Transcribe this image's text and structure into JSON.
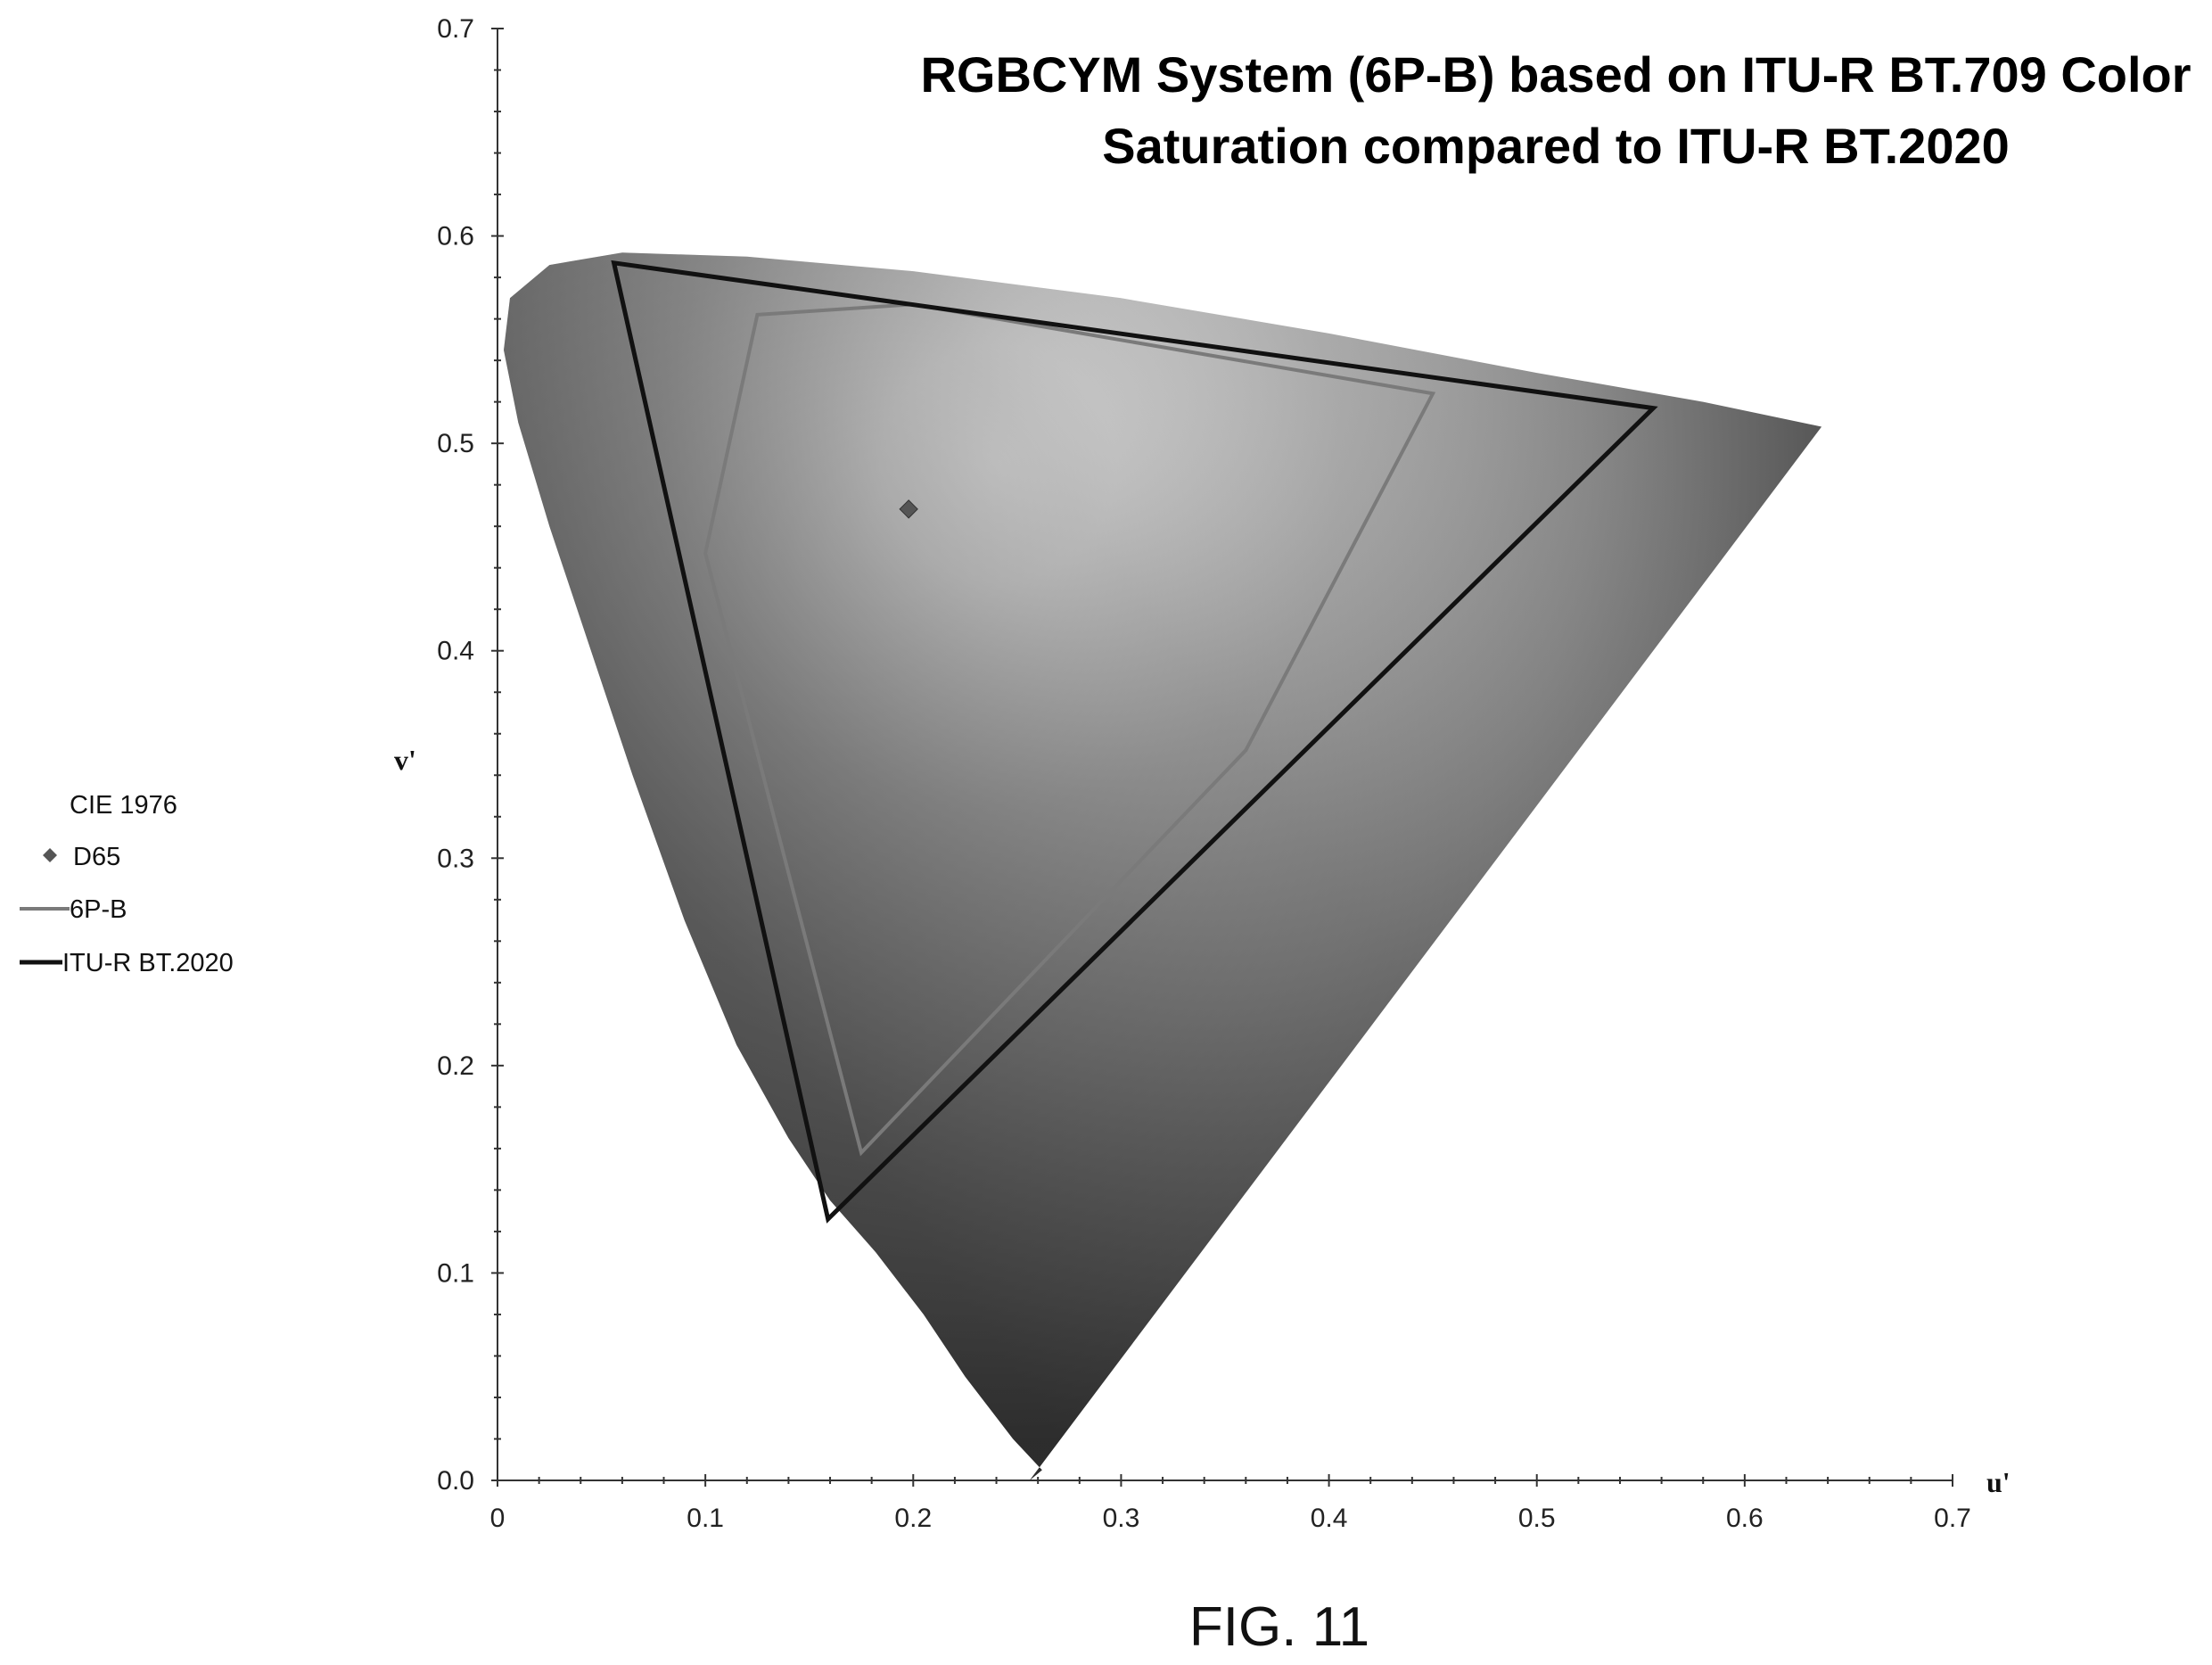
{
  "caption": "FIG. 11",
  "chart_data": {
    "type": "scatter",
    "title_lines": [
      "RGBCYM System (6P-B) based on ITU-R BT.709 Color",
      "Saturation compared to ITU-R BT.2020"
    ],
    "xlabel": "u'",
    "ylabel": "v'",
    "xlim": [
      0,
      0.7
    ],
    "ylim": [
      0,
      0.7
    ],
    "x_ticks": [
      "0",
      "0.1",
      "0.2",
      "0.3",
      "0.4",
      "0.5",
      "0.6",
      "0.7"
    ],
    "y_ticks": [
      "0.0",
      "0.1",
      "0.2",
      "0.3",
      "0.4",
      "0.5",
      "0.6",
      "0.7"
    ],
    "grid": false,
    "legend_position": "left",
    "legend_title": "CIE 1976",
    "legend": [
      "D65",
      "6P-B",
      "ITU-R BT.2020"
    ],
    "spectral_locus": [
      [
        0.256,
        0.0
      ],
      [
        0.262,
        0.005
      ],
      [
        0.248,
        0.02
      ],
      [
        0.225,
        0.05
      ],
      [
        0.205,
        0.08
      ],
      [
        0.182,
        0.11
      ],
      [
        0.16,
        0.135
      ],
      [
        0.14,
        0.165
      ],
      [
        0.115,
        0.21
      ],
      [
        0.09,
        0.27
      ],
      [
        0.065,
        0.34
      ],
      [
        0.045,
        0.4
      ],
      [
        0.025,
        0.46
      ],
      [
        0.01,
        0.51
      ],
      [
        0.003,
        0.545
      ],
      [
        0.006,
        0.57
      ],
      [
        0.025,
        0.586
      ],
      [
        0.06,
        0.592
      ],
      [
        0.12,
        0.59
      ],
      [
        0.2,
        0.583
      ],
      [
        0.3,
        0.57
      ],
      [
        0.4,
        0.553
      ],
      [
        0.5,
        0.534
      ],
      [
        0.58,
        0.52
      ],
      [
        0.637,
        0.508
      ]
    ],
    "series": [
      {
        "name": "6P-B",
        "color": "#7a7a7a",
        "closed": true,
        "points": [
          [
            0.125,
            0.562
          ],
          [
            0.2,
            0.567
          ],
          [
            0.45,
            0.524
          ],
          [
            0.36,
            0.352
          ],
          [
            0.175,
            0.158
          ],
          [
            0.1,
            0.447
          ]
        ]
      },
      {
        "name": "ITU-R BT.2020",
        "color": "#111111",
        "closed": true,
        "points": [
          [
            0.056,
            0.587
          ],
          [
            0.556,
            0.517
          ],
          [
            0.159,
            0.126
          ]
        ]
      }
    ],
    "markers": [
      {
        "name": "D65",
        "x": 0.1978,
        "y": 0.4683,
        "color": "#555555"
      }
    ]
  }
}
